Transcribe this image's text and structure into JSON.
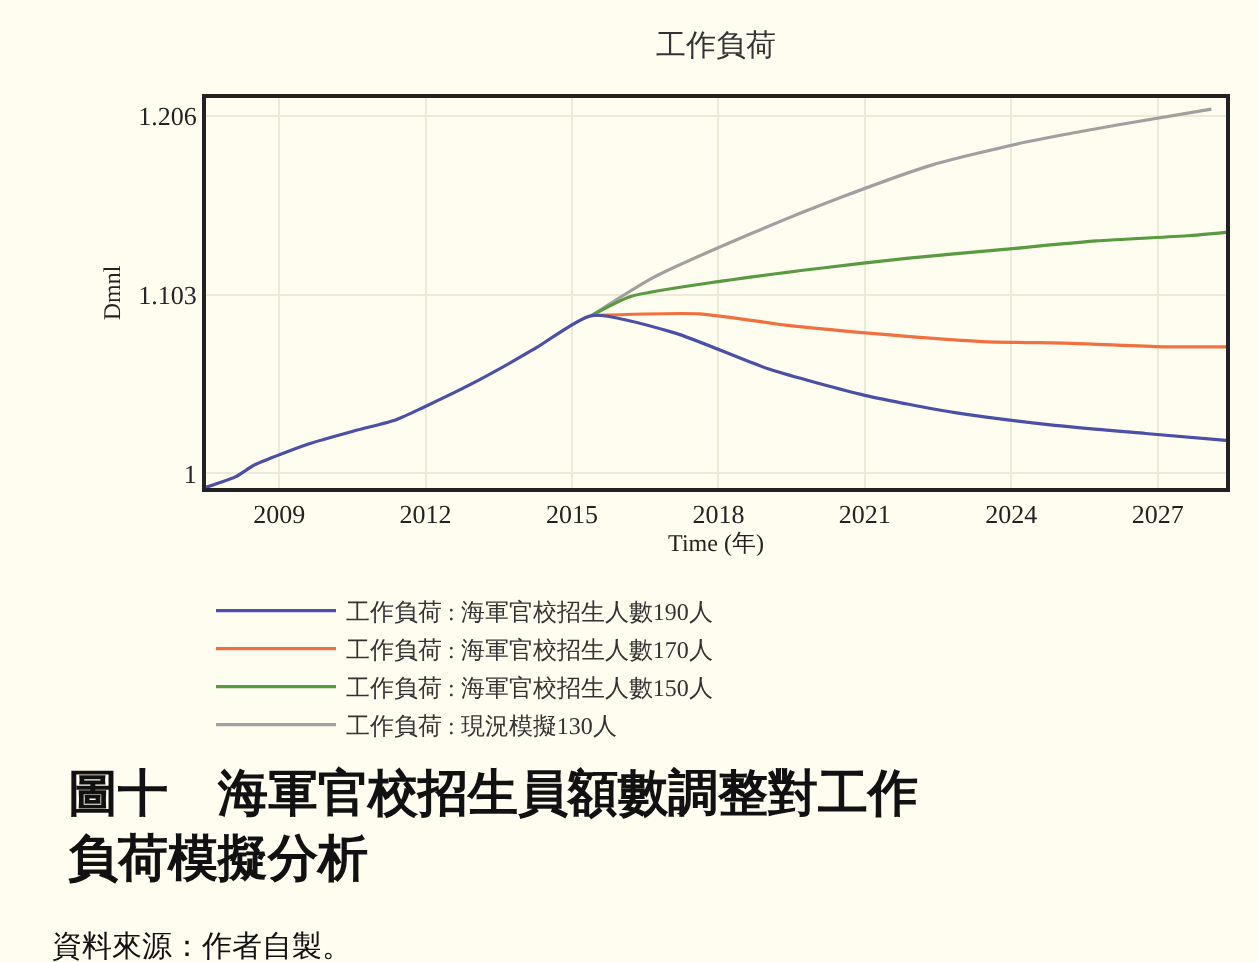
{
  "chart_data": {
    "type": "line",
    "title": "工作負荷",
    "xlabel": "Time (年)",
    "ylabel": "Dmnl",
    "annotations": [
      "圖十　海軍官校招生員額數調整對工作負荷模擬分析",
      "資料來源：作者自製。"
    ],
    "xlim": [
      2007.5,
      2028.4
    ],
    "xticks": [
      2009,
      2012,
      2015,
      2018,
      2021,
      2024,
      2027
    ],
    "ylim": [
      0.9916,
      1.2164
    ],
    "yticks": [
      1,
      1.103,
      1.206
    ],
    "grid": true,
    "legend": "bottom",
    "series": [
      {
        "name": "工作負荷 : 海軍官校招生人數190人",
        "color": "#4a4fa8",
        "x": [
          2007.5,
          2008.1,
          2008.5,
          2009.6,
          2010.6,
          2011.4,
          2011.95,
          2012.9,
          2013.75,
          2014.3,
          2015.4,
          2017.1,
          2019.05,
          2021.0,
          2022.85,
          2024.8,
          2026.75,
          2028.4
        ],
        "values": [
          0.992,
          0.998,
          1.005,
          1.017,
          1.025,
          1.031,
          1.038,
          1.051,
          1.064,
          1.073,
          1.091,
          1.081,
          1.06,
          1.045,
          1.035,
          1.028,
          1.023,
          1.019
        ]
      },
      {
        "name": "工作負荷 : 海軍官校招生人數170人",
        "color": "#f07040",
        "x": [
          2015.4,
          2017.6,
          2019.5,
          2021.45,
          2023.4,
          2025.25,
          2027.1,
          2028.4
        ],
        "values": [
          1.091,
          1.092,
          1.085,
          1.08,
          1.076,
          1.075,
          1.073,
          1.073
        ]
      },
      {
        "name": "工作負荷 : 海軍官校招生人數150人",
        "color": "#5a9a40",
        "x": [
          2015.4,
          2016.2,
          2018.1,
          2020.0,
          2021.85,
          2023.8,
          2025.75,
          2027.6,
          2028.4
        ],
        "values": [
          1.091,
          1.102,
          1.111,
          1.118,
          1.124,
          1.129,
          1.134,
          1.137,
          1.139
        ]
      },
      {
        "name": "工作負荷 : 現況模擬130人",
        "color": "#a0a0a0",
        "x": [
          2015.4,
          2016.67,
          2018.65,
          2020.5,
          2022.4,
          2024.3,
          2026.2,
          2028.1
        ],
        "values": [
          1.091,
          1.113,
          1.138,
          1.159,
          1.178,
          1.191,
          1.201,
          1.21
        ]
      }
    ]
  }
}
